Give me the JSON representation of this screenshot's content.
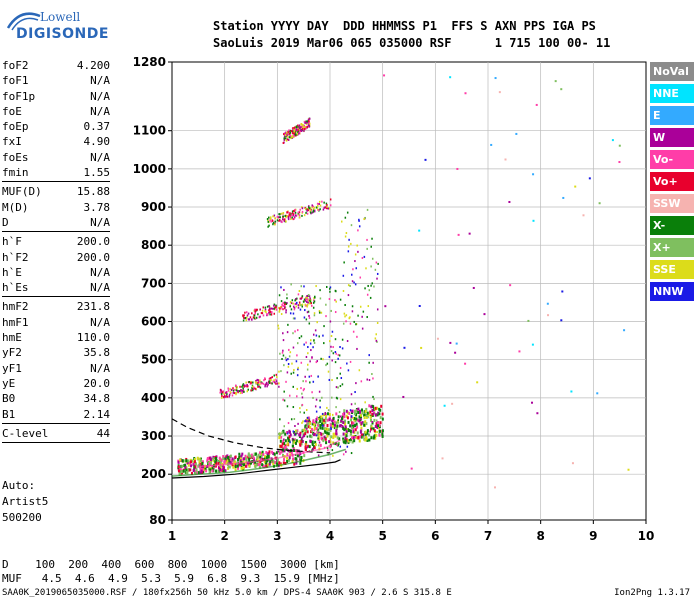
{
  "logo": {
    "line1": "Lowell",
    "line2": "DIGISONDE"
  },
  "header": {
    "line1": "Station YYYY DAY  DDD HHMMSS P1  FFS S AXN PPS IGA PS",
    "line2": "SaoLuis 2019 Mar06 065 035000 RSF      1 715 100 00- 11"
  },
  "params": [
    {
      "k": "foF2",
      "v": "4.200"
    },
    {
      "k": "foF1",
      "v": "N/A"
    },
    {
      "k": "foF1p",
      "v": "N/A"
    },
    {
      "k": "foE",
      "v": "N/A"
    },
    {
      "k": "foEp",
      "v": "0.37"
    },
    {
      "k": "fxI",
      "v": "4.90"
    },
    {
      "k": "foEs",
      "v": "N/A"
    },
    {
      "k": "fmin",
      "v": "1.55"
    },
    {
      "sep": true
    },
    {
      "k": "MUF(D)",
      "v": "15.88"
    },
    {
      "k": "M(D)",
      "v": "3.78"
    },
    {
      "k": "D",
      "v": "N/A"
    },
    {
      "sep": true
    },
    {
      "k": "h`F",
      "v": "200.0"
    },
    {
      "k": "h`F2",
      "v": "200.0"
    },
    {
      "k": "h`E",
      "v": "N/A"
    },
    {
      "k": "h`Es",
      "v": "N/A"
    },
    {
      "sep": true
    },
    {
      "k": "hmF2",
      "v": "231.8"
    },
    {
      "k": "hmF1",
      "v": "N/A"
    },
    {
      "k": "hmE",
      "v": "110.0"
    },
    {
      "k": "yF2",
      "v": "35.8"
    },
    {
      "k": "yF1",
      "v": "N/A"
    },
    {
      "k": "yE",
      "v": "20.0"
    },
    {
      "k": "B0",
      "v": "34.8"
    },
    {
      "k": "B1",
      "v": "2.14"
    },
    {
      "sep": true
    },
    {
      "k": "C-level",
      "v": "44"
    },
    {
      "sep": true
    }
  ],
  "auto": {
    "l1": "Auto:",
    "l2": "Artist5",
    "l3": "500200"
  },
  "legend": [
    {
      "label": "NoVal",
      "color": "#8c8c8c"
    },
    {
      "label": "NNE",
      "color": "#00e4ff"
    },
    {
      "label": "E",
      "color": "#33aaff"
    },
    {
      "label": "W",
      "color": "#aa0099"
    },
    {
      "label": "Vo-",
      "color": "#ff3da8"
    },
    {
      "label": "Vo+",
      "color": "#e8002d"
    },
    {
      "label": "SSW",
      "color": "#f6b3b0"
    },
    {
      "label": "X-",
      "color": "#0a7f0a"
    },
    {
      "label": "X+",
      "color": "#7fbf5f"
    },
    {
      "label": "SSE",
      "color": "#dcdc1a"
    },
    {
      "label": "NNW",
      "color": "#1a1ae6"
    }
  ],
  "muf_table": {
    "line1": "D    100  200  400  600  800  1000  1500  3000 [km]",
    "line2": "MUF   4.5  4.6  4.9  5.3  5.9  6.8  9.3  15.9 [MHz]"
  },
  "footer": {
    "left": "SAA0K_2019065035000.RSF / 180fx256h 50 kHz 5.0 km / DPS-4 SAA0K 903 / 2.6 S 315.8 E",
    "right": "Ion2Png 1.3.17"
  },
  "chart_data": {
    "type": "scatter",
    "title": "",
    "xlabel": "",
    "ylabel": "",
    "xlim": [
      1,
      10
    ],
    "ylim": [
      80,
      1280
    ],
    "x_ticks": [
      1,
      2,
      3,
      4,
      5,
      6,
      7,
      8,
      9,
      10
    ],
    "y_ticks": [
      80,
      200,
      300,
      400,
      500,
      600,
      700,
      800,
      900,
      1000,
      1100,
      1280
    ],
    "grid": true,
    "legend_position": "right",
    "traces": [
      {
        "name": "X-",
        "x": [
          1.0,
          1.2,
          1.5,
          1.8,
          2.1,
          2.5,
          3.0,
          3.5,
          4.0,
          4.3
        ],
        "y": [
          195,
          197,
          200,
          202,
          205,
          212,
          222,
          236,
          252,
          265
        ]
      },
      {
        "name": "Vo-",
        "x": [
          1.5,
          2.0,
          2.5,
          3.0,
          3.5,
          3.9,
          4.2
        ],
        "y": [
          220,
          225,
          232,
          242,
          256,
          268,
          290
        ]
      }
    ],
    "profile_solid": {
      "x": [
        1.0,
        1.6,
        2.2,
        2.8,
        3.3,
        3.8,
        4.1,
        4.2
      ],
      "y": [
        190,
        194,
        200,
        210,
        218,
        226,
        232,
        238
      ]
    },
    "profile_dashed": {
      "x": [
        1.0,
        1.3,
        1.7,
        2.2,
        2.7,
        3.2,
        3.7,
        4.0
      ],
      "y": [
        345,
        322,
        300,
        282,
        270,
        262,
        258,
        256
      ]
    }
  }
}
